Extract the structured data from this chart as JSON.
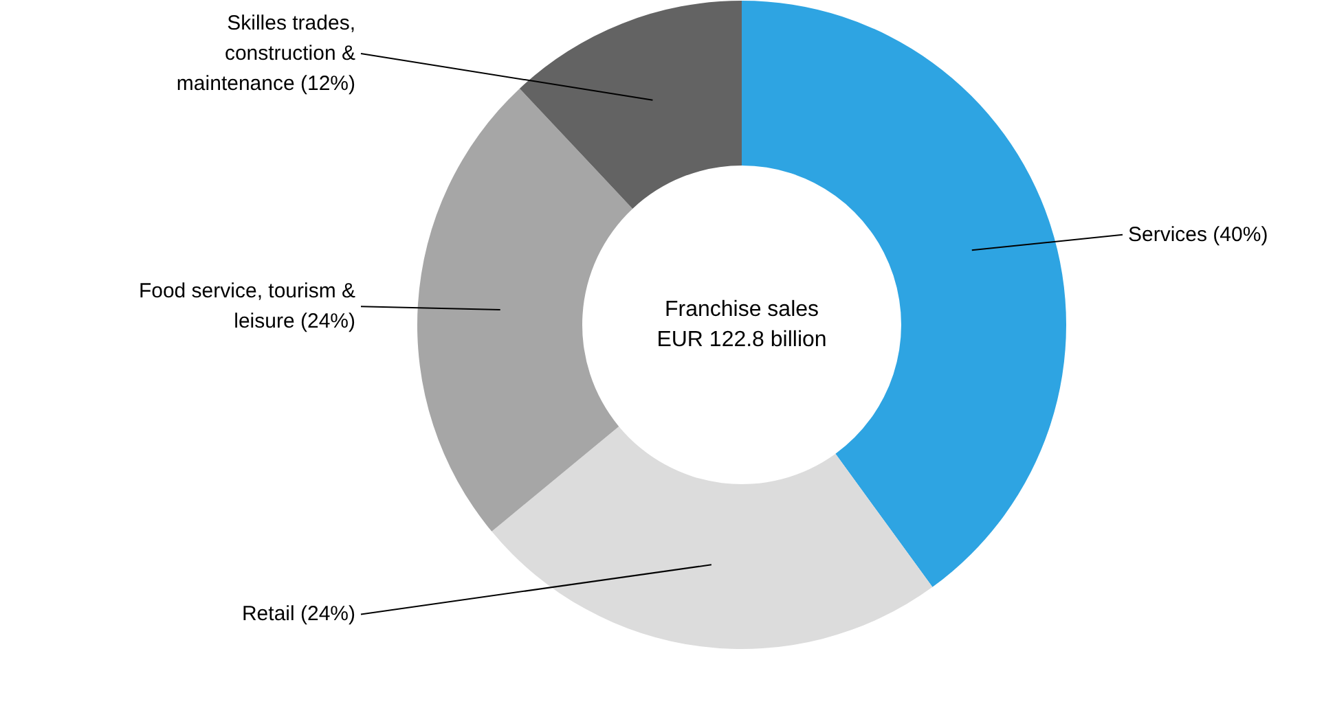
{
  "chart_data": {
    "type": "donut",
    "title": "Franchise sales EUR 122.8 billion",
    "categories": [
      "Services (40%)",
      "Retail (24%)",
      "Food service, tourism & leisure (24%)",
      "Skilles trades, construction & maintenance (12%)"
    ],
    "values": [
      40,
      24,
      24,
      12
    ],
    "colors": [
      "#2ea4e2",
      "#dcdcdc",
      "#a6a6a6",
      "#636363"
    ]
  }
}
